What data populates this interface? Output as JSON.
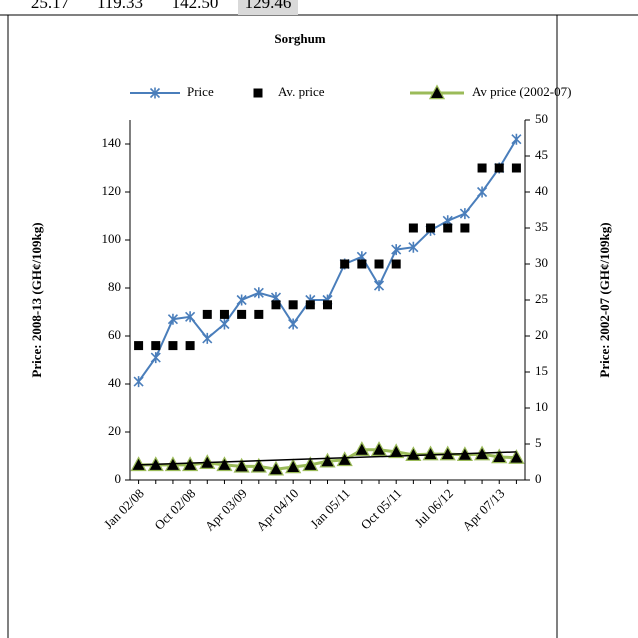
{
  "header_row": [
    "25.17",
    "119.33",
    "142.50",
    "129.46"
  ],
  "chart_data": {
    "type": "line",
    "title": "Sorghum",
    "ylabel": "Price: 2008-13 (GH¢/109kg)",
    "y2label": "Price: 2002-07 (GH¢/109kg)",
    "categories": [
      "Jan 02/08",
      null,
      null,
      "Oct 02/08",
      null,
      null,
      "Apr 03/09",
      null,
      null,
      "Apr 04/10",
      null,
      null,
      "Jan 05/11",
      null,
      null,
      "Oct 05/11",
      null,
      null,
      "Jul 06/12",
      null,
      null,
      "Apr 07/13",
      null
    ],
    "ylim": [
      0,
      150
    ],
    "yticks": [
      0,
      20,
      40,
      60,
      80,
      100,
      120,
      140
    ],
    "y2lim": [
      0,
      50
    ],
    "y2ticks": [
      0,
      5,
      10,
      15,
      20,
      25,
      30,
      35,
      40,
      45,
      50
    ],
    "series": [
      {
        "name": "Price",
        "color": "#4a7ebb",
        "style": "line",
        "values": [
          41,
          51,
          67,
          68,
          59,
          65,
          75,
          78,
          76,
          65,
          75,
          75,
          90,
          93,
          81,
          96,
          97,
          104,
          108,
          111,
          120,
          130,
          142
        ]
      },
      {
        "name": "Av. price",
        "color": "#000000",
        "style": "marker",
        "values": [
          56,
          56,
          56,
          56,
          69,
          69,
          69,
          69,
          73,
          73,
          73,
          73,
          90,
          90,
          90,
          90,
          105,
          105,
          105,
          105,
          130,
          130,
          130
        ]
      },
      {
        "name": "Av price (2002-07)",
        "color": "#9bbb59",
        "style": "line",
        "axis": "y2",
        "values": [
          2.1,
          2.1,
          2.1,
          2.1,
          2.4,
          2.1,
          1.9,
          1.9,
          1.5,
          1.8,
          2.1,
          2.6,
          2.8,
          4.2,
          4.2,
          3.9,
          3.5,
          3.6,
          3.6,
          3.5,
          3.6,
          3.2,
          3.1
        ]
      }
    ],
    "trendline": {
      "axis": "y2",
      "color": "#000000",
      "values": [
        2.1,
        3.9
      ]
    }
  }
}
